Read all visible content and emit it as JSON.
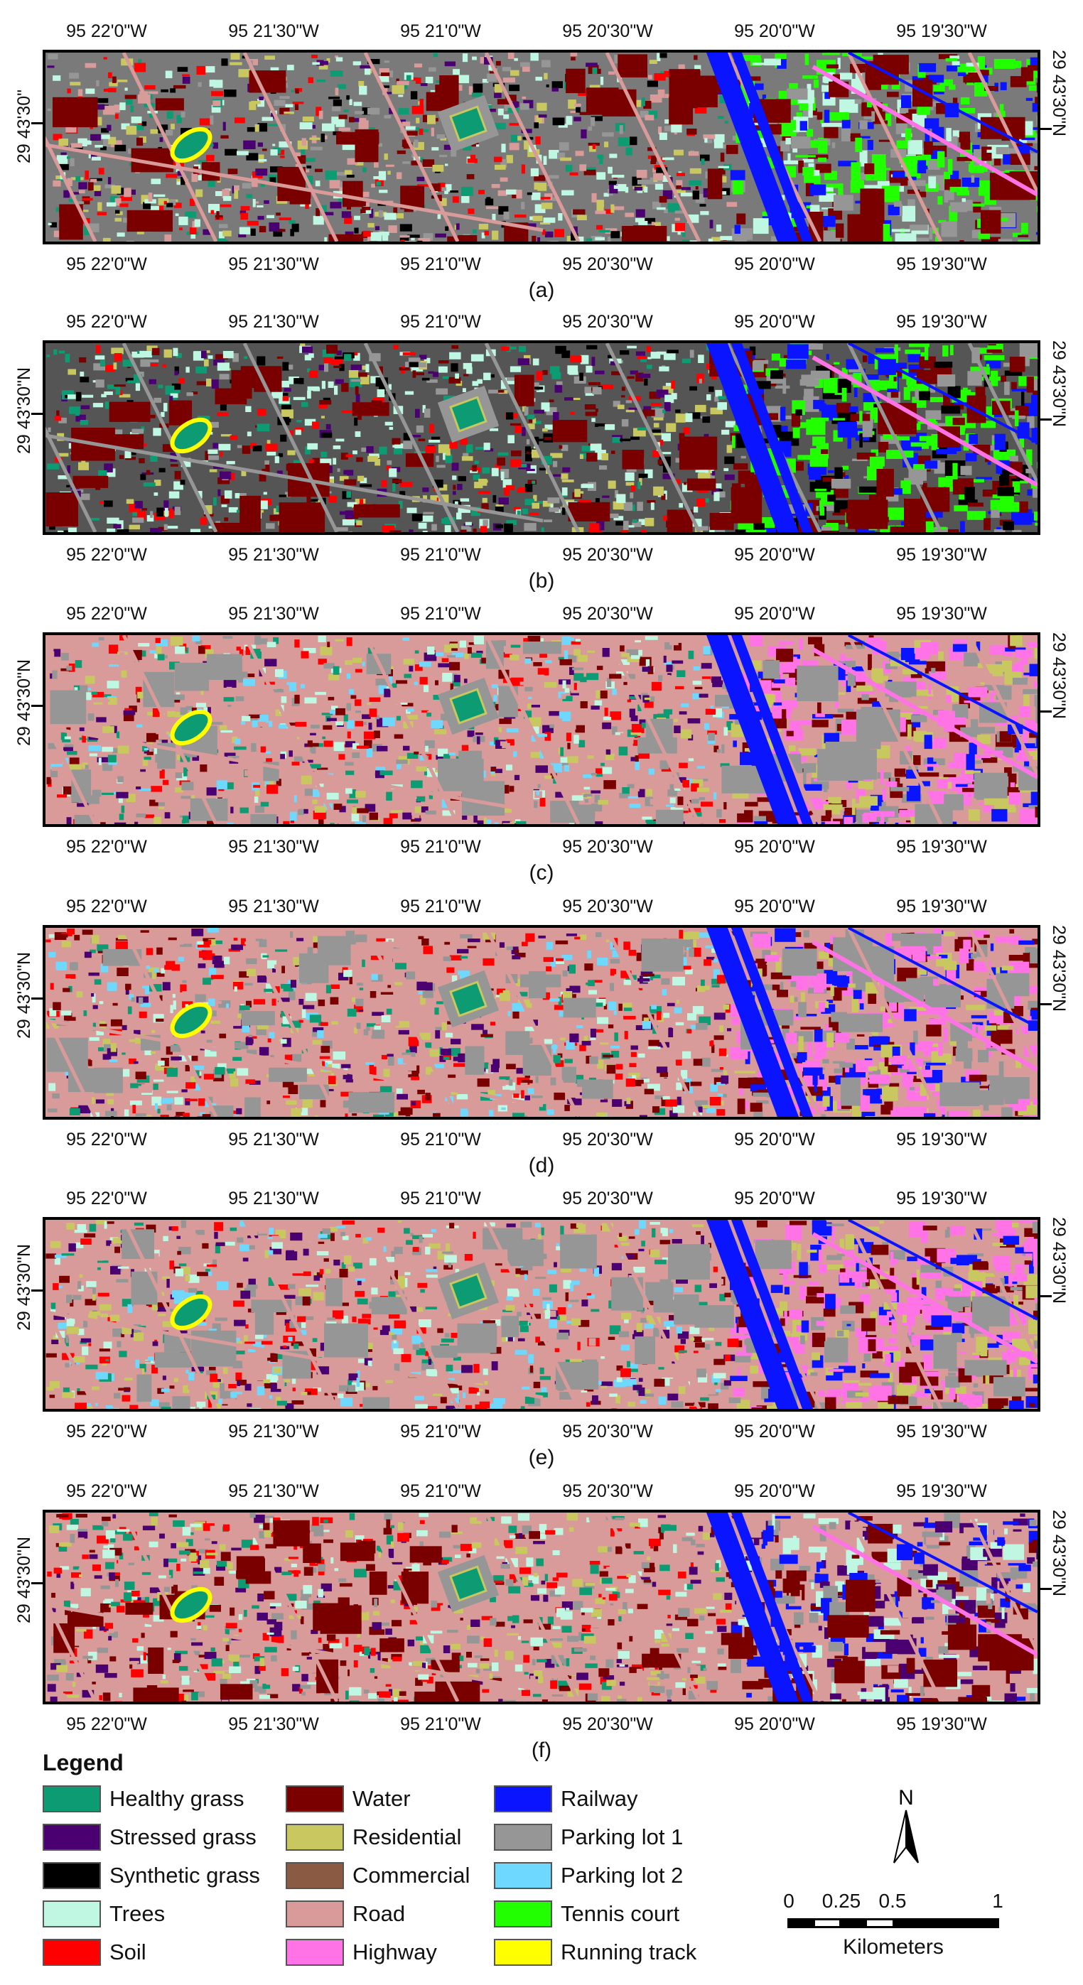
{
  "panels": [
    {
      "id": "a",
      "caption": "(a)",
      "lat_left": "29 43'30\"",
      "lat_right": "29 43'30\"N",
      "scheme": "a"
    },
    {
      "id": "b",
      "caption": "(b)",
      "lat_left": "29 43'30\"N",
      "lat_right": "29 43'30\"N",
      "scheme": "b"
    },
    {
      "id": "c",
      "caption": "(c)",
      "lat_left": "29 43'30\"N",
      "lat_right": "29 43'30\"N",
      "scheme": "c"
    },
    {
      "id": "d",
      "caption": "(d)",
      "lat_left": "29 43'30\"N",
      "lat_right": "29 43'30\"N",
      "scheme": "c"
    },
    {
      "id": "e",
      "caption": "(e)",
      "lat_left": "29 43'30\"N",
      "lat_right": "29 43'30\"N",
      "scheme": "c"
    },
    {
      "id": "f",
      "caption": "(f)",
      "lat_left": "29 43'30\"N",
      "lat_right": "29 43'30\"N",
      "scheme": "f"
    }
  ],
  "longitudes": [
    "95 22'0\"W",
    "95 21'30\"W",
    "95 21'0\"W",
    "95 20'30\"W",
    "95 20'0\"W",
    "95 19'30\"W"
  ],
  "legend": {
    "title": "Legend",
    "items": [
      {
        "label": "Healthy grass",
        "color": "#0d9b73"
      },
      {
        "label": "Stressed grass",
        "color": "#4a0070"
      },
      {
        "label": "Synthetic grass",
        "color": "#000000"
      },
      {
        "label": "Trees",
        "color": "#bff7e2"
      },
      {
        "label": "Soil",
        "color": "#ff0000"
      },
      {
        "label": "Water",
        "color": "#7a0000"
      },
      {
        "label": "Residential",
        "color": "#c9c760"
      },
      {
        "label": "Commercial",
        "color": "#8b5a42"
      },
      {
        "label": "Road",
        "color": "#d99a9a"
      },
      {
        "label": "Highway",
        "color": "#ff73e6"
      },
      {
        "label": "Railway",
        "color": "#0a14ff"
      },
      {
        "label": "Parking lot 1",
        "color": "#969696"
      },
      {
        "label": "Parking lot 2",
        "color": "#6fd8ff"
      },
      {
        "label": "Tennis court",
        "color": "#22ff00"
      },
      {
        "label": "Running track",
        "color": "#ffff00"
      }
    ]
  },
  "north_label": "N",
  "scale": {
    "ticks": [
      "0",
      "0.25",
      "0.5",
      "1"
    ],
    "unit": "Kilometers"
  }
}
